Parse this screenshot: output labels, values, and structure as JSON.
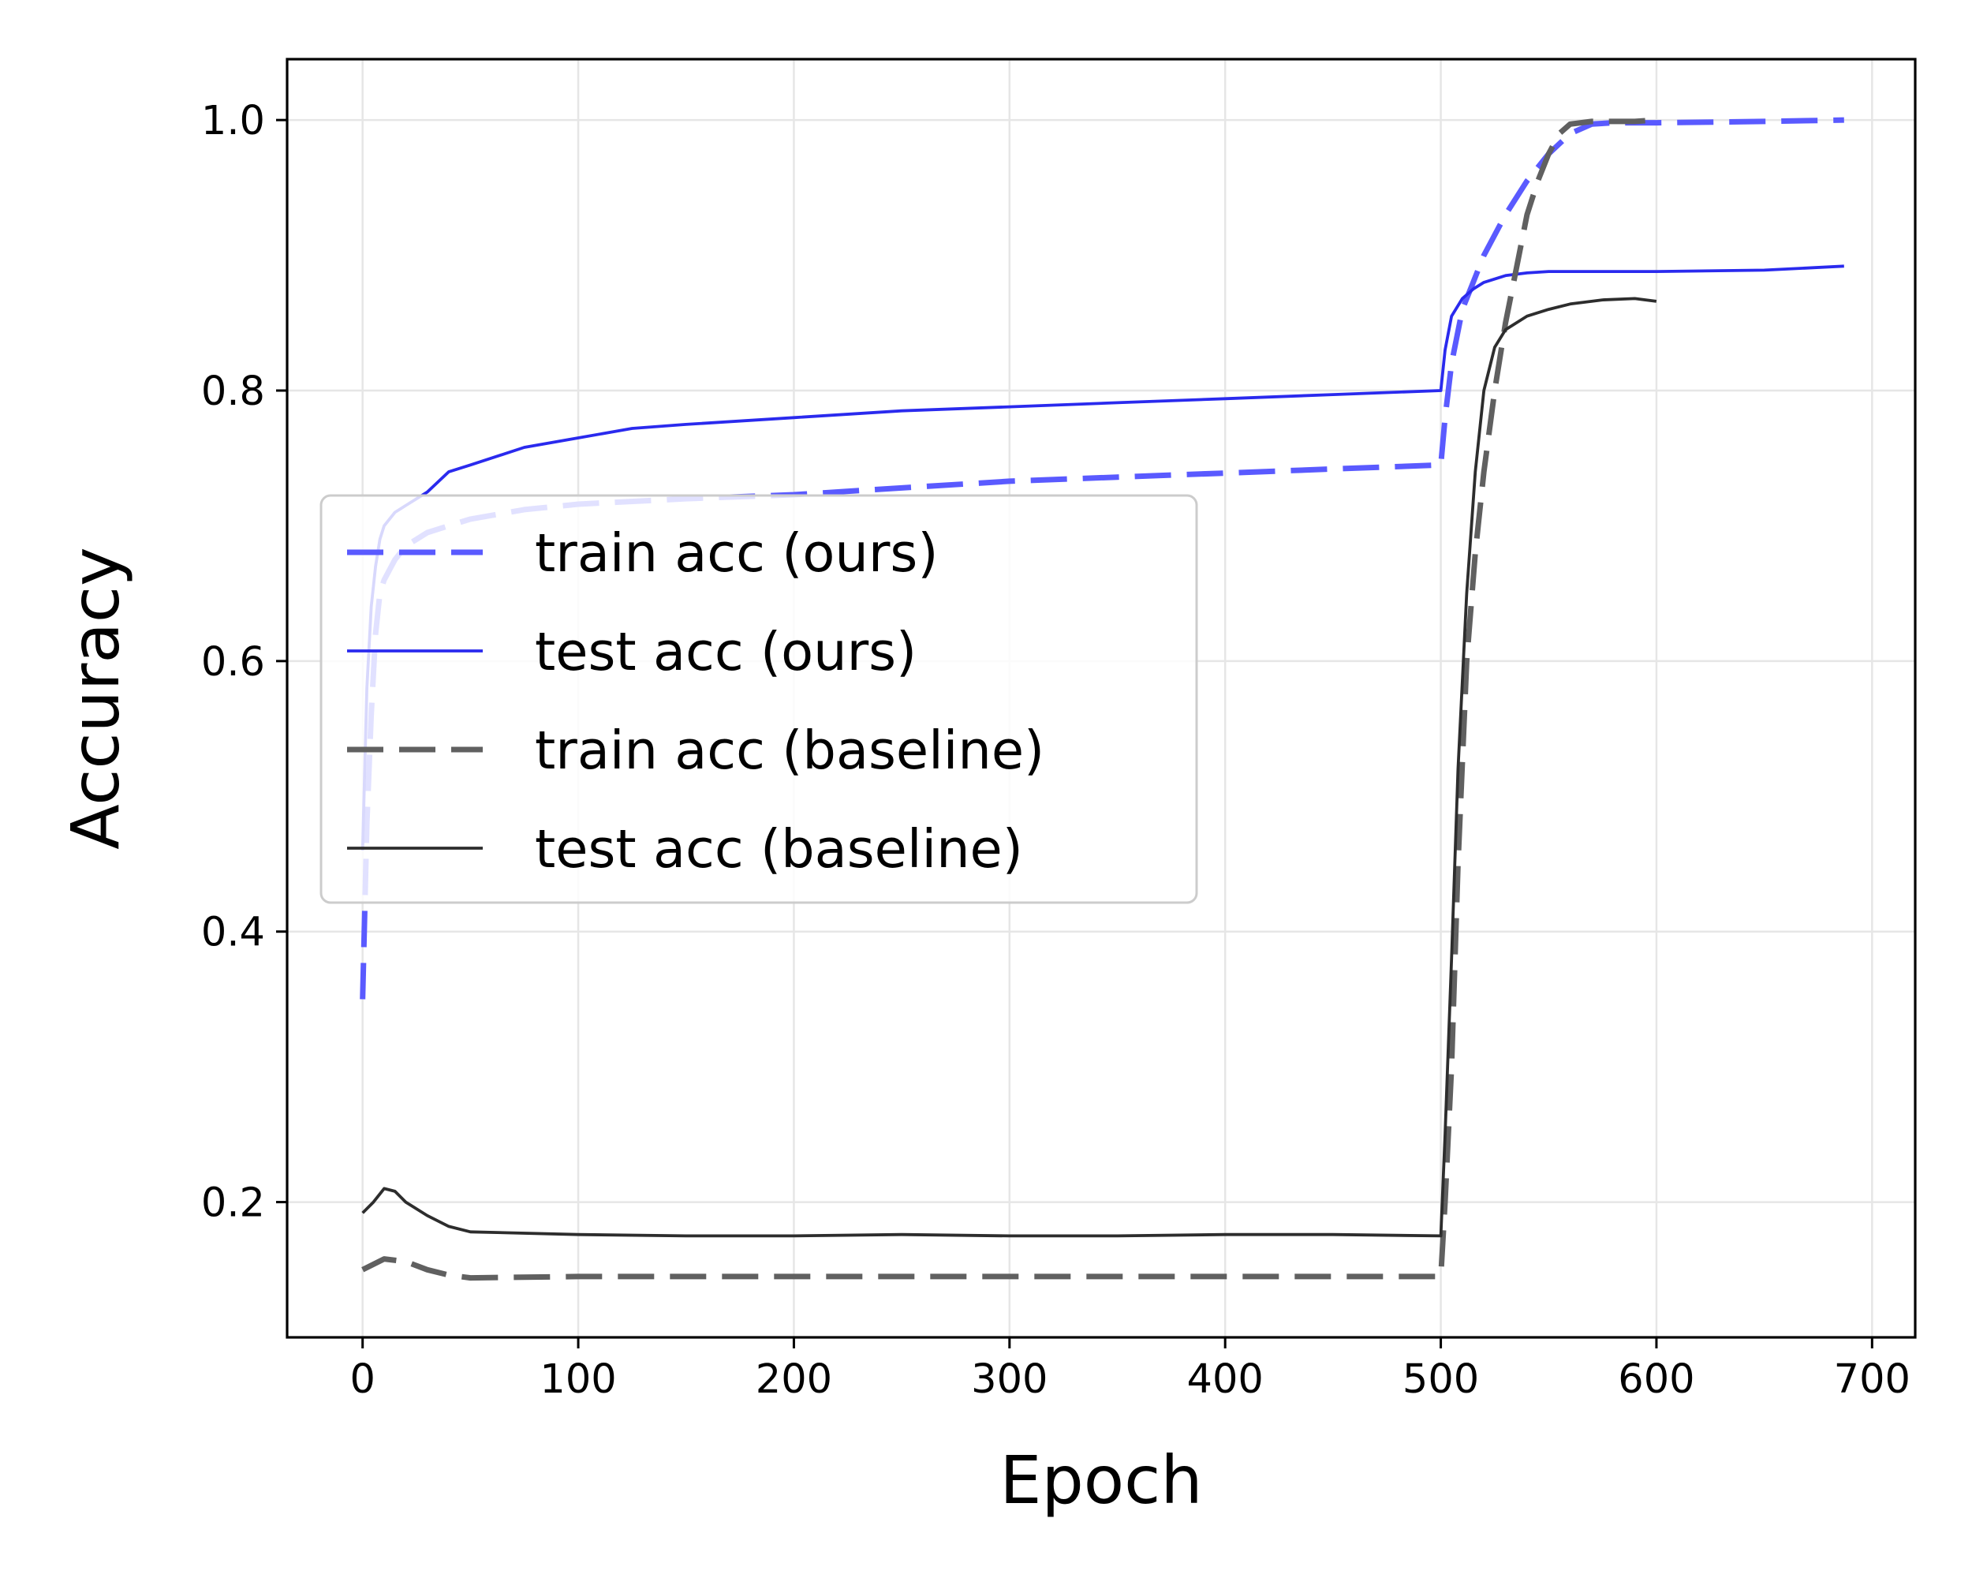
{
  "chart_data": {
    "type": "line",
    "title": "",
    "xlabel": "Epoch",
    "ylabel": "Accuracy",
    "xlim": [
      -35,
      720
    ],
    "ylim": [
      0.1,
      1.045
    ],
    "xticks": [
      0,
      100,
      200,
      300,
      400,
      500,
      600,
      700
    ],
    "yticks": [
      0.2,
      0.4,
      0.6,
      0.8,
      1.0
    ],
    "xtick_labels": [
      "0",
      "100",
      "200",
      "300",
      "400",
      "500",
      "600",
      "700"
    ],
    "ytick_labels": [
      "0.2",
      "0.4",
      "0.6",
      "0.8",
      "1.0"
    ],
    "grid": true,
    "legend_position": "center-left",
    "series": [
      {
        "name": "train acc (ours)",
        "color": "#5a5aff",
        "style": "dashed",
        "x": [
          0,
          2,
          4,
          6,
          8,
          10,
          15,
          20,
          30,
          40,
          50,
          75,
          100,
          150,
          200,
          250,
          300,
          350,
          400,
          450,
          500,
          502,
          505,
          510,
          515,
          520,
          530,
          540,
          550,
          560,
          570,
          580,
          600,
          650,
          687
        ],
        "y": [
          0.35,
          0.48,
          0.56,
          0.62,
          0.65,
          0.66,
          0.675,
          0.685,
          0.695,
          0.7,
          0.705,
          0.712,
          0.716,
          0.72,
          0.723,
          0.728,
          0.733,
          0.736,
          0.739,
          0.742,
          0.745,
          0.78,
          0.82,
          0.86,
          0.88,
          0.9,
          0.93,
          0.955,
          0.975,
          0.99,
          0.997,
          0.998,
          0.998,
          0.999,
          1.0
        ]
      },
      {
        "name": "test acc (ours)",
        "color": "#2a2aee",
        "style": "solid",
        "x": [
          0,
          2,
          4,
          6,
          8,
          10,
          15,
          20,
          30,
          40,
          50,
          75,
          100,
          125,
          150,
          200,
          250,
          300,
          350,
          400,
          450,
          500,
          502,
          505,
          510,
          515,
          520,
          530,
          540,
          550,
          575,
          600,
          650,
          687
        ],
        "y": [
          0.46,
          0.58,
          0.64,
          0.67,
          0.69,
          0.7,
          0.71,
          0.715,
          0.725,
          0.74,
          0.745,
          0.758,
          0.765,
          0.772,
          0.775,
          0.78,
          0.785,
          0.788,
          0.791,
          0.794,
          0.797,
          0.8,
          0.83,
          0.855,
          0.868,
          0.875,
          0.88,
          0.885,
          0.887,
          0.888,
          0.888,
          0.888,
          0.889,
          0.892
        ]
      },
      {
        "name": "train acc (baseline)",
        "color": "#606060",
        "style": "dashed",
        "x": [
          0,
          10,
          20,
          30,
          40,
          50,
          100,
          200,
          300,
          400,
          500,
          502,
          505,
          508,
          512,
          516,
          520,
          525,
          530,
          535,
          540,
          545,
          550,
          555,
          560,
          570,
          580,
          590,
          600
        ],
        "y": [
          0.15,
          0.158,
          0.156,
          0.15,
          0.146,
          0.144,
          0.145,
          0.145,
          0.145,
          0.145,
          0.145,
          0.2,
          0.3,
          0.45,
          0.6,
          0.68,
          0.74,
          0.8,
          0.85,
          0.89,
          0.93,
          0.955,
          0.975,
          0.99,
          0.997,
          0.999,
          0.999,
          0.999,
          1.0
        ]
      },
      {
        "name": "test acc (baseline)",
        "color": "#2d2d2d",
        "style": "solid",
        "x": [
          0,
          5,
          10,
          15,
          20,
          30,
          40,
          50,
          100,
          150,
          200,
          250,
          300,
          350,
          400,
          450,
          500,
          502,
          505,
          508,
          512,
          516,
          520,
          525,
          530,
          540,
          550,
          560,
          575,
          590,
          600
        ],
        "y": [
          0.192,
          0.2,
          0.21,
          0.208,
          0.2,
          0.19,
          0.182,
          0.178,
          0.176,
          0.175,
          0.175,
          0.176,
          0.175,
          0.175,
          0.176,
          0.176,
          0.175,
          0.25,
          0.38,
          0.52,
          0.65,
          0.74,
          0.8,
          0.832,
          0.845,
          0.855,
          0.86,
          0.864,
          0.867,
          0.868,
          0.866
        ]
      }
    ]
  }
}
